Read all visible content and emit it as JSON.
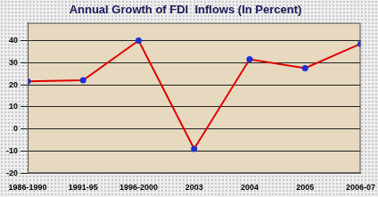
{
  "chart_data": {
    "type": "line",
    "title": "Annual Growth of FDI  Inflows (In Percent)",
    "categories": [
      "1986-1990",
      "1991-95",
      "1996-2000",
      "2003",
      "2004",
      "2005",
      "2006-07"
    ],
    "values": [
      21.5,
      22,
      40,
      -9,
      31.5,
      27.5,
      38.5
    ],
    "color": "#e00000",
    "marker": "circle",
    "ylim": [
      -20,
      48
    ],
    "yticks": [
      -20,
      -10,
      0,
      10,
      20,
      30,
      40
    ],
    "grid": true
  }
}
